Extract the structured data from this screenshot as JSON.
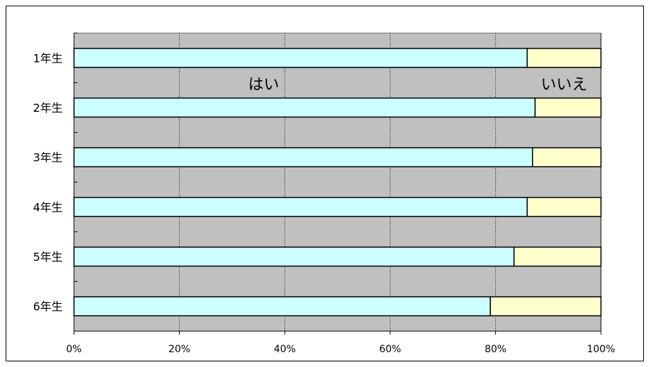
{
  "chart_data": {
    "type": "bar",
    "orientation": "horizontal",
    "stacked": true,
    "percent": true,
    "categories": [
      "1年生",
      "2年生",
      "3年生",
      "4年生",
      "5年生",
      "6年生"
    ],
    "series": [
      {
        "name": "はい",
        "values": [
          86,
          87.5,
          87,
          86,
          83.5,
          79
        ],
        "color": "#ccffff"
      },
      {
        "name": "いいえ",
        "values": [
          14,
          12.5,
          13,
          14,
          16.5,
          21
        ],
        "color": "#ffffcc"
      }
    ],
    "xticks": [
      "0%",
      "20%",
      "40%",
      "60%",
      "80%",
      "100%"
    ],
    "xlim": [
      0,
      100
    ],
    "grid": true,
    "plot_background": "#c0c0c0",
    "annotations": [
      {
        "text": "はい",
        "x": 36,
        "row_gap": 1
      },
      {
        "text": "いいえ",
        "x": 93,
        "row_gap": 1
      }
    ]
  }
}
